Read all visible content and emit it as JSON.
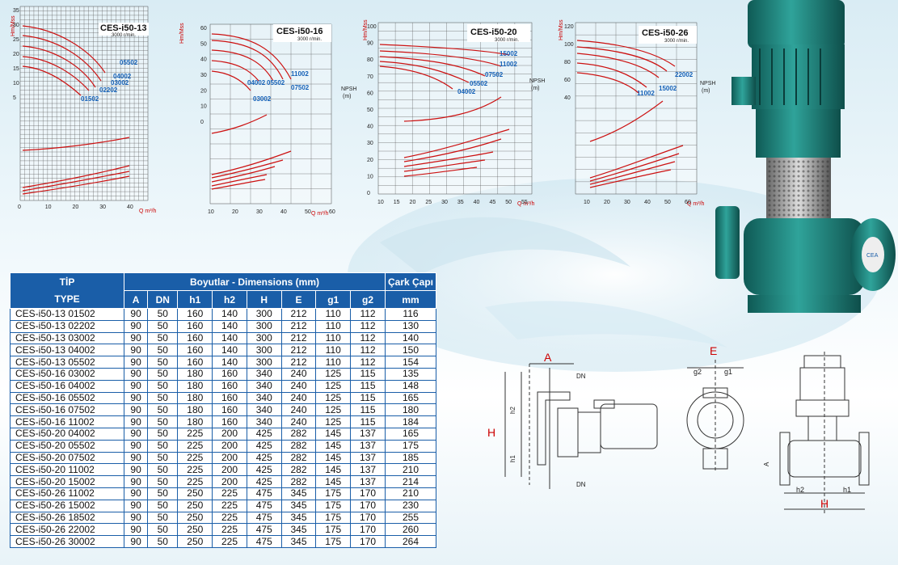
{
  "colors": {
    "header_blue": "#1a5ea8",
    "curve_red": "#cc1111",
    "label_blue": "#1561b7"
  },
  "charts": [
    {
      "title": "CES-i50-13",
      "rpm": "3000 r/min.",
      "yaxis": "Hm/Mss",
      "qunit": "Q m³/h",
      "yticks": [
        "35",
        "30",
        "25",
        "20",
        "15",
        "10",
        "5"
      ],
      "kwticks": [
        "5",
        "4",
        "3",
        "2",
        "1"
      ],
      "xticks": [
        "0",
        "10",
        "20",
        "30",
        "40"
      ],
      "models": [
        "01502",
        "02202",
        "03002",
        "04002",
        "05502"
      ],
      "diam": [
        "Ø154",
        "Ø150",
        "Ø140",
        "Ø130",
        "Ø116"
      ]
    },
    {
      "title": "CES-i50-16",
      "rpm": "3000 r/min.",
      "yaxis": "Hm/Mss",
      "qunit": "Q m³/h",
      "yticks": [
        "60",
        "50",
        "40",
        "30",
        "20",
        "10",
        "0"
      ],
      "kwticks": [
        "10",
        "8",
        "6",
        "4",
        "2"
      ],
      "xticks": [
        "10",
        "20",
        "30",
        "40",
        "50",
        "60"
      ],
      "models": [
        "11002",
        "07502",
        "05502",
        "04002",
        "03002"
      ],
      "diam": [
        "Ø184",
        "Ø180",
        "Ø165",
        "Ø148",
        "Ø135"
      ],
      "npsh": [
        "NPSH",
        "(m)",
        "8",
        "6",
        "4",
        "2"
      ]
    },
    {
      "title": "CES-i50-20",
      "rpm": "3000 r/min.",
      "yaxis": "Hm/Mss",
      "qunit": "Q m³/h",
      "yticks": [
        "100",
        "90",
        "80",
        "70",
        "60",
        "50",
        "40",
        "30",
        "20",
        "10",
        "0"
      ],
      "kwticks": [
        "18",
        "16",
        "14",
        "12",
        "10",
        "8",
        "6",
        "4",
        "2",
        "0"
      ],
      "xticks": [
        "10",
        "15",
        "20",
        "25",
        "30",
        "35",
        "40",
        "45",
        "50",
        "55"
      ],
      "models": [
        "15002",
        "11002",
        "07502",
        "05502",
        "04002"
      ],
      "diam": [
        "Ø214",
        "Ø210",
        "Ø185",
        "Ø175",
        "Ø165"
      ],
      "npsh": [
        "NPSH",
        "(m)",
        "5",
        "4",
        "3",
        "2",
        "1"
      ]
    },
    {
      "title": "CES-i50-26",
      "rpm": "3000 r/min.",
      "yaxis": "Hm/Mss",
      "qunit": "Q m³/h",
      "yticks": [
        "120",
        "100",
        "80",
        "60",
        "40"
      ],
      "kwticks": [
        "30",
        "25",
        "20",
        "15",
        "10",
        "5"
      ],
      "xticks": [
        "10",
        "20",
        "30",
        "40",
        "50",
        "60"
      ],
      "models": [
        "22002",
        "15002",
        "11002"
      ],
      "diam": [
        "Ø264",
        "Ø260",
        "Ø255",
        "Ø230",
        "Ø210"
      ],
      "npsh": [
        "NPSH",
        "(m)",
        "6",
        "4",
        "2"
      ]
    }
  ],
  "table": {
    "h_tip": "TİP",
    "h_type": "TYPE",
    "h_dims": "Boyutlar -  Dimensions (mm)",
    "h_cark": "Çark Çapı",
    "cols": [
      "A",
      "DN",
      "h1",
      "h2",
      "H",
      "E",
      "g1",
      "g2",
      "mm"
    ],
    "rows": [
      [
        "CES-i50-13 01502",
        "90",
        "50",
        "160",
        "140",
        "300",
        "212",
        "110",
        "112",
        "116"
      ],
      [
        "CES-i50-13 02202",
        "90",
        "50",
        "160",
        "140",
        "300",
        "212",
        "110",
        "112",
        "130"
      ],
      [
        "CES-i50-13 03002",
        "90",
        "50",
        "160",
        "140",
        "300",
        "212",
        "110",
        "112",
        "140"
      ],
      [
        "CES-i50-13 04002",
        "90",
        "50",
        "160",
        "140",
        "300",
        "212",
        "110",
        "112",
        "150"
      ],
      [
        "CES-i50-13 05502",
        "90",
        "50",
        "160",
        "140",
        "300",
        "212",
        "110",
        "112",
        "154"
      ],
      [
        "CES-i50-16 03002",
        "90",
        "50",
        "180",
        "160",
        "340",
        "240",
        "125",
        "115",
        "135"
      ],
      [
        "CES-i50-16 04002",
        "90",
        "50",
        "180",
        "160",
        "340",
        "240",
        "125",
        "115",
        "148"
      ],
      [
        "CES-i50-16 05502",
        "90",
        "50",
        "180",
        "160",
        "340",
        "240",
        "125",
        "115",
        "165"
      ],
      [
        "CES-i50-16 07502",
        "90",
        "50",
        "180",
        "160",
        "340",
        "240",
        "125",
        "115",
        "180"
      ],
      [
        "CES-i50-16 11002",
        "90",
        "50",
        "180",
        "160",
        "340",
        "240",
        "125",
        "115",
        "184"
      ],
      [
        "CES-i50-20 04002",
        "90",
        "50",
        "225",
        "200",
        "425",
        "282",
        "145",
        "137",
        "165"
      ],
      [
        "CES-i50-20 05502",
        "90",
        "50",
        "225",
        "200",
        "425",
        "282",
        "145",
        "137",
        "175"
      ],
      [
        "CES-i50-20 07502",
        "90",
        "50",
        "225",
        "200",
        "425",
        "282",
        "145",
        "137",
        "185"
      ],
      [
        "CES-i50-20 11002",
        "90",
        "50",
        "225",
        "200",
        "425",
        "282",
        "145",
        "137",
        "210"
      ],
      [
        "CES-i50-20 15002",
        "90",
        "50",
        "225",
        "200",
        "425",
        "282",
        "145",
        "137",
        "214"
      ],
      [
        "CES-i50-26 11002",
        "90",
        "50",
        "250",
        "225",
        "475",
        "345",
        "175",
        "170",
        "210"
      ],
      [
        "CES-i50-26 15002",
        "90",
        "50",
        "250",
        "225",
        "475",
        "345",
        "175",
        "170",
        "230"
      ],
      [
        "CES-i50-26 18502",
        "90",
        "50",
        "250",
        "225",
        "475",
        "345",
        "175",
        "170",
        "255"
      ],
      [
        "CES-i50-26 22002",
        "90",
        "50",
        "250",
        "225",
        "475",
        "345",
        "175",
        "170",
        "260"
      ],
      [
        "CES-i50-26 30002",
        "90",
        "50",
        "250",
        "225",
        "475",
        "345",
        "175",
        "170",
        "264"
      ]
    ]
  },
  "drawing": {
    "A": "A",
    "DN": "DN",
    "H": "H",
    "h1": "h1",
    "h2": "h2",
    "E": "E",
    "g1": "g1",
    "g2": "g2"
  },
  "logo": "CEA"
}
